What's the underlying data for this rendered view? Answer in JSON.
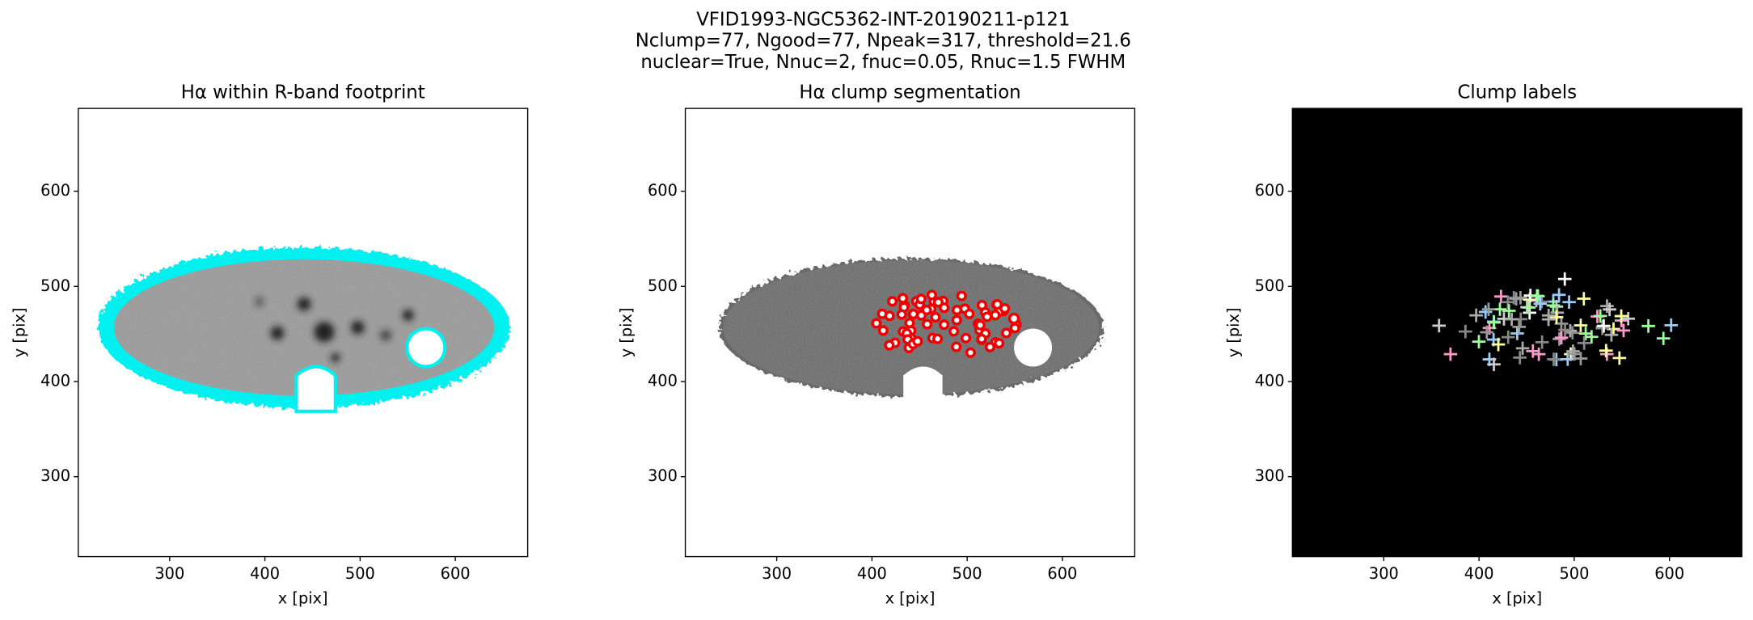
{
  "figure": {
    "title_lines": [
      "VFID1993-NGC5362-INT-20190211-p121",
      "Nclump=77, Ngood=77, Npeak=317, threshold=21.6",
      "nuclear=True, Nnuc=2, fnuc=0.05, Rnuc=1.5 FWHM"
    ]
  },
  "chart_data": [
    {
      "type": "image",
      "title": "Hα within R-band footprint",
      "xlabel": "x [pix]",
      "ylabel": "y [pix]",
      "xlim": [
        204,
        676
      ],
      "ylim": [
        216,
        687
      ],
      "xticks": [
        300,
        400,
        500,
        600
      ],
      "yticks": [
        300,
        400,
        500,
        600
      ]
    },
    {
      "type": "image",
      "title": "Hα clump segmentation",
      "xlabel": "x [pix]",
      "ylabel": "y [pix]",
      "xlim": [
        204,
        676
      ],
      "ylim": [
        216,
        687
      ],
      "xticks": [
        300,
        400,
        500,
        600
      ],
      "yticks": [
        300,
        400,
        500,
        600
      ]
    },
    {
      "type": "image",
      "title": "Clump labels",
      "xlabel": "x [pix]",
      "ylabel": "y [pix]",
      "xlim": [
        204,
        676
      ],
      "ylim": [
        216,
        687
      ],
      "xticks": [
        300,
        400,
        500,
        600
      ],
      "yticks": [
        300,
        400,
        500,
        600
      ]
    }
  ]
}
